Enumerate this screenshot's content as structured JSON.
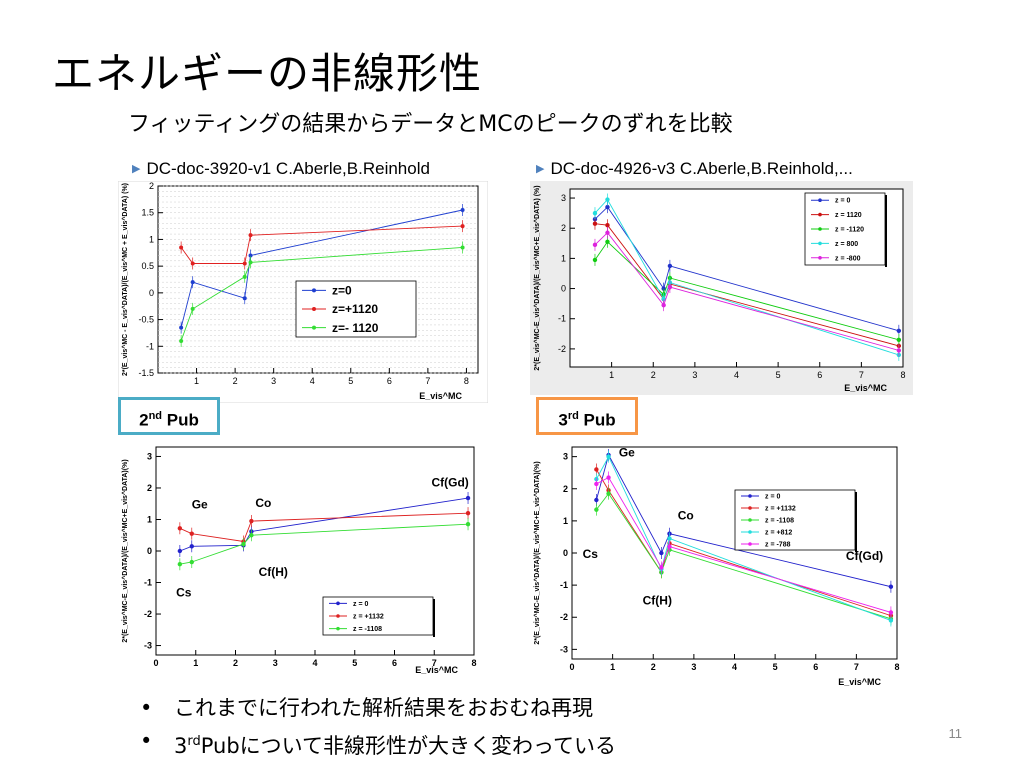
{
  "slide": {
    "title": "エネルギーの非線形性",
    "subtitle": "フィッティングの結果からデータとMCのピークのずれを比較",
    "ref_left": "DC-doc-3920-v1 C.Aberle,B.Reinhold",
    "ref_right": "DC-doc-4926-v3 C.Aberle,B.Reinhold,...",
    "pub2_num": "2",
    "pub2_sup": "nd",
    "pub2_text": "Pub",
    "pub3_num": "3",
    "pub3_sup": "rd",
    "pub3_text": "Pub",
    "bullet1": "これまでに行われた解析結果をおおむね再現",
    "bullet2_pre": "3",
    "bullet2_sup": "rd",
    "bullet2_post": "Pubについて非線形性が大きく変わっている",
    "bullet_mark": "•",
    "page_number": "11",
    "colors": {
      "pub2_border": "#4bacc6",
      "pub3_border": "#f79646",
      "bullet_triangle": "#4f81bd"
    }
  },
  "chart_data": [
    {
      "type": "scatter",
      "id": "ul",
      "title": "",
      "xlabel": "E_vis^MC",
      "ylabel": "2*(E_vis^MC - E_vis^DATA)/(E_vis^MC + E_vis^DATA) (%)",
      "xlim": [
        0,
        8.3
      ],
      "ylim": [
        -1.5,
        2
      ],
      "x_ticks": [
        1,
        2,
        3,
        4,
        5,
        6,
        7,
        8
      ],
      "y_ticks": [
        -1.5,
        -1,
        -0.5,
        0,
        0.5,
        1,
        1.5,
        2
      ],
      "grid": true,
      "legend_position": "center-right",
      "series": [
        {
          "name": "z=0",
          "color": "#1f3fd0",
          "x": [
            0.6,
            0.9,
            2.25,
            2.4,
            7.9
          ],
          "y": [
            -0.65,
            0.2,
            -0.1,
            0.7,
            1.55
          ]
        },
        {
          "name": "z=+1120",
          "color": "#e02020",
          "x": [
            0.6,
            0.9,
            2.25,
            2.4,
            7.9
          ],
          "y": [
            0.85,
            0.55,
            0.55,
            1.08,
            1.25
          ]
        },
        {
          "name": "z=- 1120",
          "color": "#33dd33",
          "x": [
            0.6,
            0.9,
            2.25,
            2.4,
            7.9
          ],
          "y": [
            -0.9,
            -0.3,
            0.3,
            0.57,
            0.85
          ]
        }
      ]
    },
    {
      "type": "line",
      "id": "ur",
      "title": "",
      "xlabel": "E_vis^MC",
      "ylabel": "2*(E_vis^MC-E_vis^DATA)/(E_vis^MC+E_vis^DATA) (%)",
      "xlim": [
        0,
        8
      ],
      "ylim": [
        -2.6,
        3.3
      ],
      "x_ticks": [
        1,
        2,
        3,
        4,
        5,
        6,
        7,
        8
      ],
      "y_ticks": [
        -2,
        -1,
        0,
        1,
        2,
        3
      ],
      "grid": false,
      "legend_position": "top-right",
      "series": [
        {
          "name": "z = 0",
          "color": "#2233cc",
          "x": [
            0.6,
            0.9,
            2.25,
            2.4,
            7.9
          ],
          "y": [
            2.3,
            2.7,
            0.0,
            0.75,
            -1.4
          ]
        },
        {
          "name": "z = 1120",
          "color": "#cc1111",
          "x": [
            0.6,
            0.9,
            2.25,
            2.4,
            7.9
          ],
          "y": [
            2.15,
            2.1,
            -0.35,
            0.15,
            -1.9
          ]
        },
        {
          "name": "z = -1120",
          "color": "#11cc11",
          "x": [
            0.6,
            0.9,
            2.25,
            2.4,
            7.9
          ],
          "y": [
            0.95,
            1.55,
            -0.2,
            0.35,
            -1.7
          ]
        },
        {
          "name": "z = 800",
          "color": "#22dddd",
          "x": [
            0.6,
            0.9,
            2.25,
            2.4,
            7.9
          ],
          "y": [
            2.5,
            2.95,
            -0.35,
            0.2,
            -2.2
          ]
        },
        {
          "name": "z = -800",
          "color": "#dd22dd",
          "x": [
            0.6,
            0.9,
            2.25,
            2.4,
            7.9
          ],
          "y": [
            1.45,
            1.85,
            -0.55,
            0.05,
            -2.05
          ]
        }
      ]
    },
    {
      "type": "scatter",
      "id": "ll",
      "title": "",
      "xlabel": "E_vis^MC",
      "ylabel": "2*(E_vis^MC-E_vis^DATA)/(E_vis^MC+E_vis^DATA)(%)",
      "xlim": [
        0,
        8
      ],
      "ylim": [
        -3.3,
        3.3
      ],
      "x_ticks": [
        0,
        1,
        2,
        3,
        4,
        5,
        6,
        7,
        8
      ],
      "y_ticks": [
        -3,
        -2,
        -1,
        0,
        1,
        2,
        3
      ],
      "grid": false,
      "legend_position": "bottom-right",
      "annotations": [
        {
          "text": "Cf(Gd)",
          "x": 7.4,
          "y": 2.05
        },
        {
          "text": "Ge",
          "x": 1.1,
          "y": 1.35
        },
        {
          "text": "Co",
          "x": 2.7,
          "y": 1.4
        },
        {
          "text": "Cf(H)",
          "x": 2.95,
          "y": -0.8
        },
        {
          "text": "Cs",
          "x": 0.7,
          "y": -1.45
        }
      ],
      "series": [
        {
          "name": "z = 0",
          "color": "#2222cc",
          "x": [
            0.6,
            0.9,
            2.2,
            2.4,
            7.85
          ],
          "y": [
            0.0,
            0.15,
            0.18,
            0.62,
            1.68
          ]
        },
        {
          "name": "z = +1132",
          "color": "#dd2222",
          "x": [
            0.6,
            0.9,
            2.2,
            2.4,
            7.85
          ],
          "y": [
            0.72,
            0.55,
            0.3,
            0.95,
            1.2
          ]
        },
        {
          "name": "z = -1108",
          "color": "#33dd33",
          "x": [
            0.6,
            0.9,
            2.2,
            2.4,
            7.85
          ],
          "y": [
            -0.42,
            -0.35,
            0.22,
            0.5,
            0.85
          ]
        }
      ]
    },
    {
      "type": "scatter",
      "id": "lr",
      "title": "",
      "xlabel": "E_vis^MC",
      "ylabel": "2*(E_vis^MC-E_vis^DATA)/(E_vis^MC+E_vis^DATA)(%)",
      "xlim": [
        0,
        8
      ],
      "ylim": [
        -3.3,
        3.3
      ],
      "x_ticks": [
        0,
        1,
        2,
        3,
        4,
        5,
        6,
        7,
        8
      ],
      "y_ticks": [
        -3,
        -2,
        -1,
        0,
        1,
        2,
        3
      ],
      "grid": false,
      "legend_position": "top-right",
      "annotations": [
        {
          "text": "Ge",
          "x": 1.35,
          "y": 3.0
        },
        {
          "text": "Co",
          "x": 2.8,
          "y": 1.05
        },
        {
          "text": "Cs",
          "x": 0.45,
          "y": -0.15
        },
        {
          "text": "Cf(H)",
          "x": 2.1,
          "y": -1.6
        },
        {
          "text": "Cf(Gd)",
          "x": 7.2,
          "y": -0.22
        }
      ],
      "series": [
        {
          "name": "z = 0",
          "color": "#2222cc",
          "x": [
            0.6,
            0.9,
            2.2,
            2.4,
            7.85
          ],
          "y": [
            1.65,
            3.05,
            0.0,
            0.6,
            -1.05
          ]
        },
        {
          "name": "z = +1132",
          "color": "#dd2222",
          "x": [
            0.6,
            0.9,
            2.2,
            2.4,
            7.85
          ],
          "y": [
            2.6,
            1.95,
            -0.6,
            0.3,
            -1.95
          ]
        },
        {
          "name": "z = -1108",
          "color": "#33dd33",
          "x": [
            0.6,
            0.9,
            2.2,
            2.4,
            7.85
          ],
          "y": [
            1.35,
            1.85,
            -0.6,
            0.1,
            -2.05
          ]
        },
        {
          "name": "z = +812",
          "color": "#22dddd",
          "x": [
            0.6,
            0.9,
            2.2,
            2.4,
            7.85
          ],
          "y": [
            2.3,
            3.0,
            -0.5,
            0.45,
            -2.1
          ]
        },
        {
          "name": "z = -788",
          "color": "#ee22ee",
          "x": [
            0.6,
            0.9,
            2.2,
            2.4,
            7.85
          ],
          "y": [
            2.15,
            2.35,
            -0.45,
            0.2,
            -1.85
          ]
        }
      ]
    }
  ]
}
